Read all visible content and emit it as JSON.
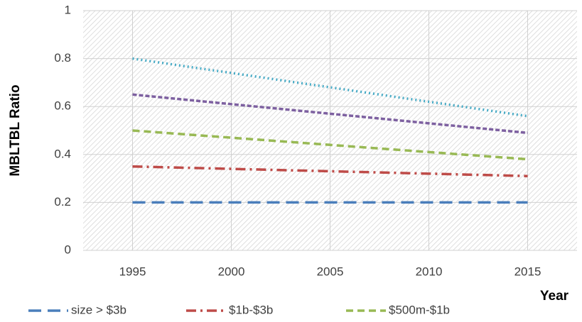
{
  "chart_data": {
    "type": "line",
    "x": [
      1995,
      2000,
      2005,
      2010,
      2015
    ],
    "xlim": [
      1992.5,
      2017.5
    ],
    "xticks": [
      1995,
      2000,
      2005,
      2010,
      2015
    ],
    "ylim": [
      0,
      1
    ],
    "yticks": [
      0,
      0.2,
      0.4,
      0.6,
      0.8,
      1
    ],
    "x_label": "Year",
    "y_label": "MBLTBL Ratio",
    "grid": true,
    "series": [
      {
        "name": "size > $3b",
        "color": "#4a7ebb",
        "values": [
          0.2,
          0.2,
          0.2,
          0.2,
          0.2
        ]
      },
      {
        "name": "$1b-$3b",
        "color": "#be4b48",
        "values": [
          0.35,
          0.34,
          0.33,
          0.32,
          0.31
        ]
      },
      {
        "name": "$500m-$1b",
        "color": "#98b954",
        "values": [
          0.5,
          0.47,
          0.44,
          0.41,
          0.38
        ]
      },
      {
        "color": "#7d60a0",
        "values": [
          0.65,
          0.61,
          0.57,
          0.53,
          0.49
        ]
      },
      {
        "color": "#46aac5",
        "values": [
          0.8,
          0.74,
          0.68,
          0.62,
          0.56
        ]
      }
    ]
  }
}
